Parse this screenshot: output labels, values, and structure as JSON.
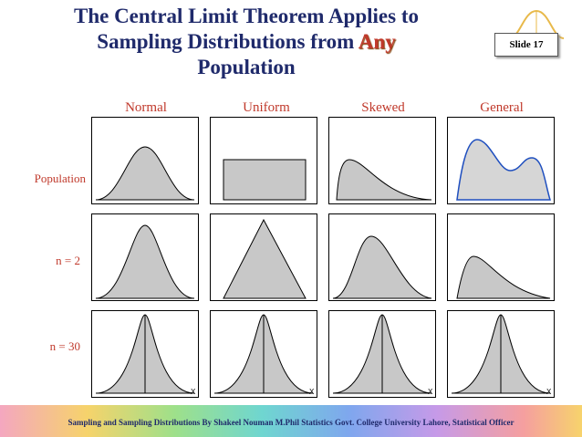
{
  "slide": {
    "title_line1": "The Central Limit Theorem Applies to",
    "title_line2_pre": "Sampling Distributions from",
    "title_line2_em": "Any",
    "title_line3": "Population",
    "slide_number": "Slide 17"
  },
  "columns": [
    "Normal",
    "Uniform",
    "Skewed",
    "General"
  ],
  "rows": [
    "Population",
    "n = 2",
    "n = 30"
  ],
  "axis_symbol": "X",
  "footer": "Sampling and Sampling Distributions By Shakeel Nouman M.Phil Statistics Govt. College University Lahore, Statistical Officer",
  "colors": {
    "title": "#1f2a6b",
    "accent": "#c0392b",
    "fill": "#c8c8c8",
    "general_stroke": "#1f4fbf"
  }
}
